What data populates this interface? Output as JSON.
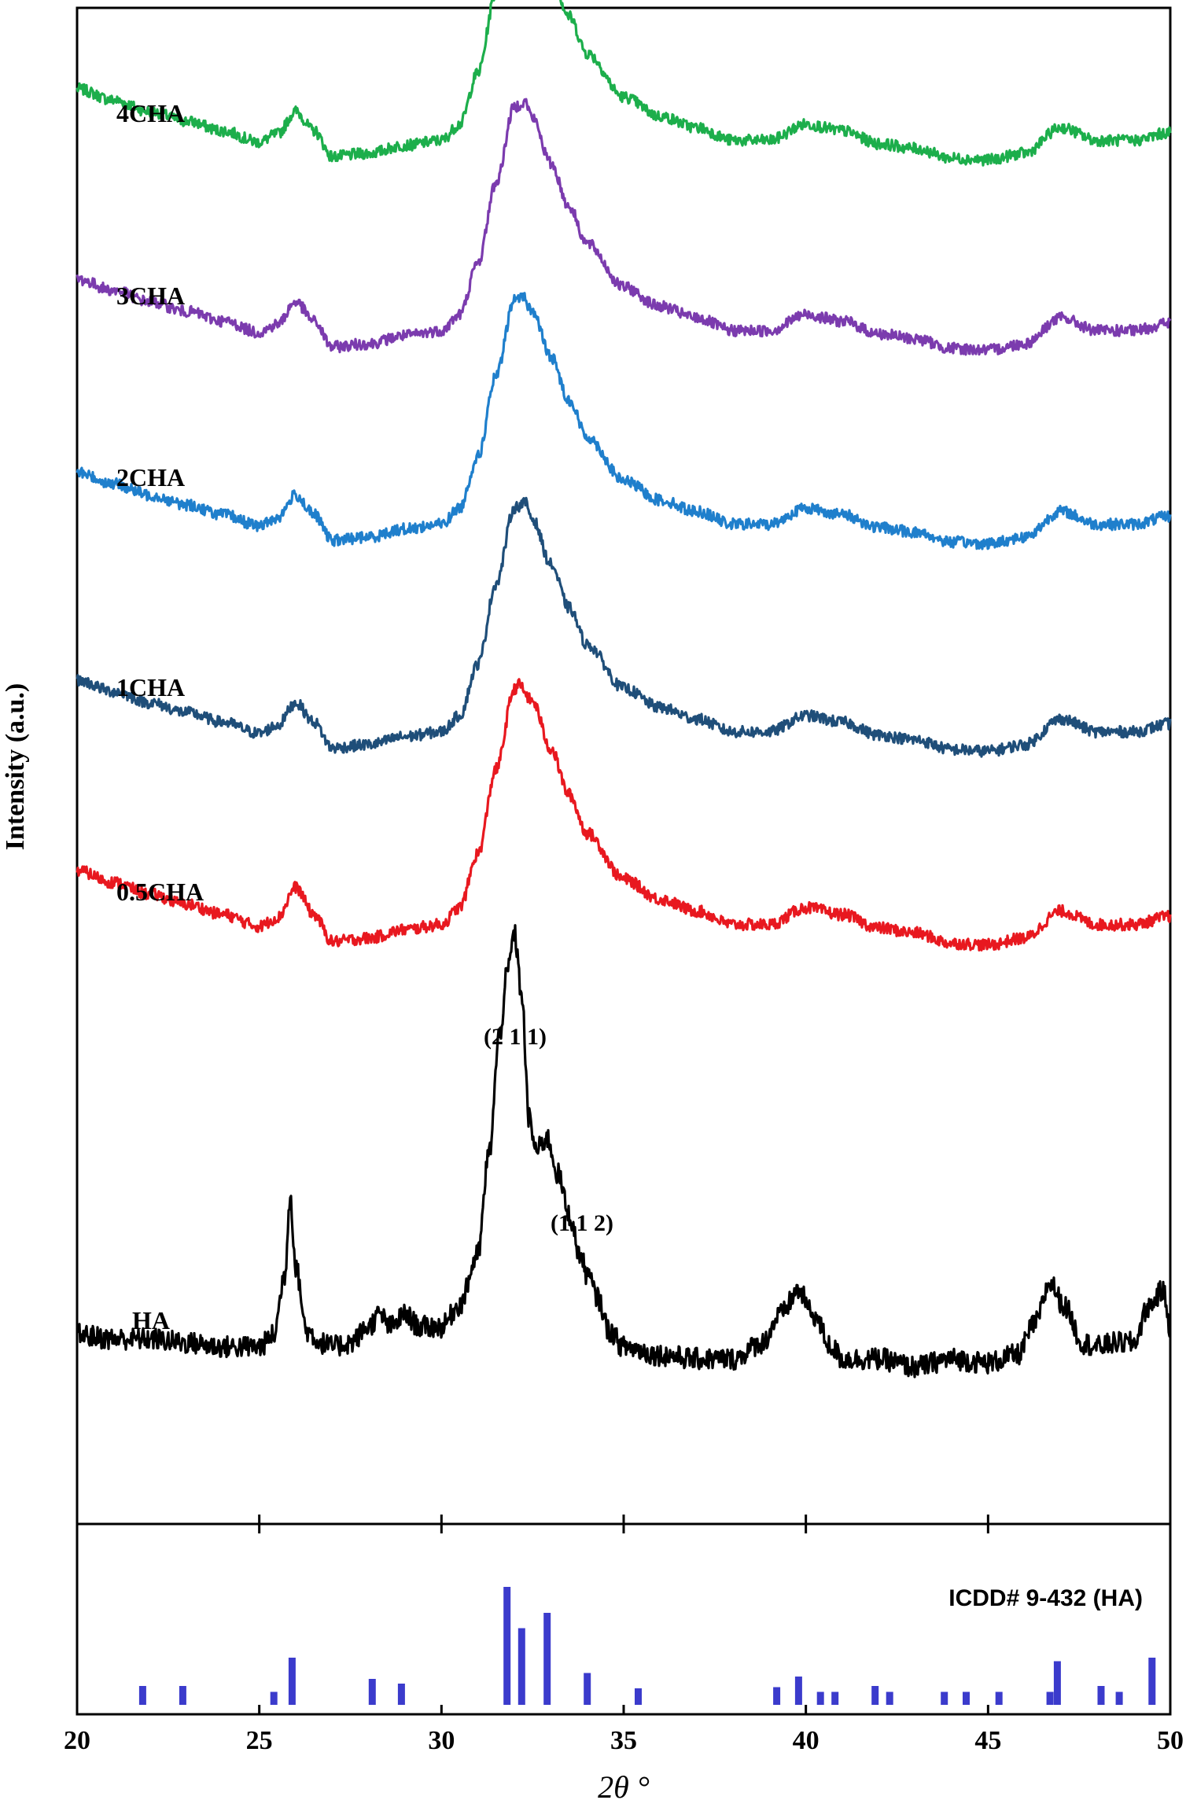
{
  "chart_data": [
    {
      "type": "line",
      "title": "",
      "xlabel": "2θ °",
      "ylabel": "Intensity (a.u.)",
      "xlim": [
        20,
        50
      ],
      "x_ticks": [
        "20",
        "25",
        "30",
        "35",
        "40",
        "45",
        "50"
      ],
      "y_ticks": [],
      "grid": false,
      "legend": "none",
      "series": [
        {
          "name": "4CHA",
          "color": "#1cae4b",
          "x": [
            20,
            21,
            22,
            23,
            24,
            25,
            25.5,
            26,
            26.5,
            27,
            28,
            29,
            30,
            30.5,
            31,
            31.5,
            32,
            32.2,
            32.5,
            33,
            33.5,
            34,
            35,
            36,
            37,
            38,
            39,
            40,
            41,
            42,
            43,
            44,
            45,
            46,
            47,
            48,
            49,
            50
          ],
          "y": [
            100,
            93,
            86,
            80,
            74,
            67,
            72,
            86,
            74,
            58,
            60,
            65,
            68,
            78,
            110,
            160,
            207,
            210,
            200,
            172,
            145,
            122,
            95,
            83,
            76,
            68,
            68,
            78,
            74,
            66,
            63,
            57,
            56,
            60,
            76,
            68,
            68,
            73
          ]
        },
        {
          "name": "3CHA",
          "color": "#7b3bae",
          "x": [
            20,
            21,
            22,
            23,
            24,
            25,
            25.5,
            26,
            26.5,
            27,
            28,
            29,
            30,
            30.5,
            31,
            31.5,
            32,
            32.3,
            32.5,
            33,
            33.5,
            34,
            35,
            36,
            37,
            38,
            39,
            40,
            41,
            42,
            43,
            44,
            45,
            46,
            47,
            48,
            49,
            50
          ],
          "y": [
            100,
            93,
            86,
            80,
            74,
            67,
            72,
            86,
            74,
            58,
            60,
            65,
            68,
            78,
            110,
            160,
            207,
            210,
            200,
            172,
            145,
            122,
            95,
            83,
            76,
            68,
            68,
            78,
            74,
            66,
            63,
            57,
            56,
            60,
            76,
            68,
            68,
            73
          ]
        },
        {
          "name": "2CHA",
          "color": "#1f7fcc",
          "x": [
            20,
            21,
            22,
            23,
            24,
            25,
            25.5,
            26,
            26.5,
            27,
            28,
            29,
            30,
            30.5,
            31,
            31.5,
            32,
            32.2,
            32.5,
            33,
            33.5,
            34,
            35,
            36,
            37,
            38,
            39,
            40,
            41,
            42,
            43,
            44,
            45,
            46,
            47,
            48,
            49,
            50
          ],
          "y": [
            100,
            93,
            86,
            80,
            74,
            67,
            72,
            86,
            74,
            58,
            60,
            65,
            68,
            78,
            110,
            160,
            207,
            210,
            200,
            172,
            145,
            122,
            95,
            83,
            76,
            68,
            68,
            78,
            74,
            66,
            63,
            57,
            56,
            60,
            76,
            68,
            68,
            73
          ]
        },
        {
          "name": "1CHA",
          "color": "#1f4e79",
          "x": [
            20,
            21,
            22,
            23,
            24,
            25,
            25.5,
            26,
            26.5,
            27,
            28,
            29,
            30,
            30.5,
            31,
            31.5,
            32,
            32.3,
            32.5,
            33,
            33.5,
            34,
            35,
            36,
            37,
            38,
            39,
            40,
            41,
            42,
            43,
            44,
            45,
            46,
            47,
            48,
            49,
            50
          ],
          "y": [
            100,
            93,
            86,
            80,
            74,
            67,
            72,
            86,
            74,
            58,
            60,
            65,
            68,
            78,
            110,
            160,
            207,
            210,
            200,
            172,
            145,
            122,
            95,
            83,
            76,
            68,
            68,
            78,
            74,
            66,
            63,
            57,
            56,
            60,
            76,
            68,
            68,
            73
          ]
        },
        {
          "name": "0.5CHA",
          "color": "#e8181f",
          "x": [
            20,
            21,
            22,
            23,
            24,
            25,
            25.5,
            26,
            26.5,
            27,
            28,
            29,
            30,
            30.5,
            31,
            31.5,
            32,
            32.1,
            32.5,
            33,
            33.5,
            34,
            35,
            36,
            37,
            38,
            39,
            40,
            41,
            42,
            43,
            44,
            45,
            46,
            47,
            48,
            49,
            50
          ],
          "y": [
            100,
            93,
            86,
            80,
            74,
            67,
            72,
            90,
            74,
            58,
            60,
            65,
            68,
            78,
            110,
            160,
            207,
            210,
            200,
            172,
            145,
            122,
            95,
            83,
            76,
            68,
            68,
            78,
            74,
            66,
            63,
            57,
            56,
            60,
            76,
            68,
            68,
            73
          ]
        },
        {
          "name": "HA",
          "color": "#000000",
          "x": [
            20,
            21,
            22,
            23,
            24,
            25,
            25.4,
            25.7,
            25.85,
            26,
            26.3,
            26.7,
            27,
            27.5,
            28,
            28.3,
            28.6,
            29,
            29.4,
            30,
            30.5,
            31,
            31.3,
            31.6,
            31.8,
            32,
            32.2,
            32.4,
            32.6,
            32.9,
            33.2,
            33.5,
            33.8,
            34,
            34.3,
            34.6,
            35,
            36,
            37,
            38,
            38.8,
            39.3,
            39.8,
            40.2,
            40.7,
            41,
            42,
            43,
            44,
            45,
            45.8,
            46.3,
            46.7,
            47.1,
            47.6,
            48,
            48.5,
            49,
            49.4,
            49.8,
            50
          ],
          "y": [
            70,
            68,
            68,
            66,
            64,
            64,
            70,
            100,
            140,
            104,
            72,
            66,
            64,
            66,
            74,
            80,
            74,
            80,
            74,
            74,
            85,
            110,
            160,
            220,
            250,
            270,
            240,
            178,
            162,
            168,
            150,
            130,
            110,
            100,
            88,
            72,
            64,
            60,
            58,
            58,
            66,
            80,
            92,
            80,
            64,
            58,
            58,
            54,
            58,
            56,
            60,
            76,
            96,
            84,
            66,
            64,
            66,
            66,
            84,
            92,
            74
          ]
        }
      ],
      "sample_labels": [
        "4CHA",
        "3CHA",
        "2CHA",
        "1CHA",
        "0.5CHA",
        "HA"
      ],
      "peak_annotations": [
        "(2 1 1)",
        "(1 1 2)"
      ]
    },
    {
      "type": "bar",
      "title": "ICDD# 9-432 (HA)",
      "xlim": [
        20,
        50
      ],
      "ylim": [
        0,
        100
      ],
      "color": "#3b3bcc",
      "x": [
        21.8,
        22.9,
        25.4,
        25.9,
        28.1,
        28.9,
        31.8,
        32.2,
        32.9,
        34.0,
        35.4,
        39.2,
        39.8,
        40.4,
        40.8,
        41.9,
        42.3,
        43.8,
        44.4,
        45.3,
        46.7,
        46.9,
        48.1,
        48.6,
        49.5
      ],
      "values": [
        16,
        16,
        11,
        40,
        22,
        18,
        100,
        65,
        78,
        27,
        14,
        15,
        24,
        11,
        11,
        16,
        11,
        11,
        11,
        11,
        11,
        37,
        16,
        11,
        40
      ]
    }
  ]
}
